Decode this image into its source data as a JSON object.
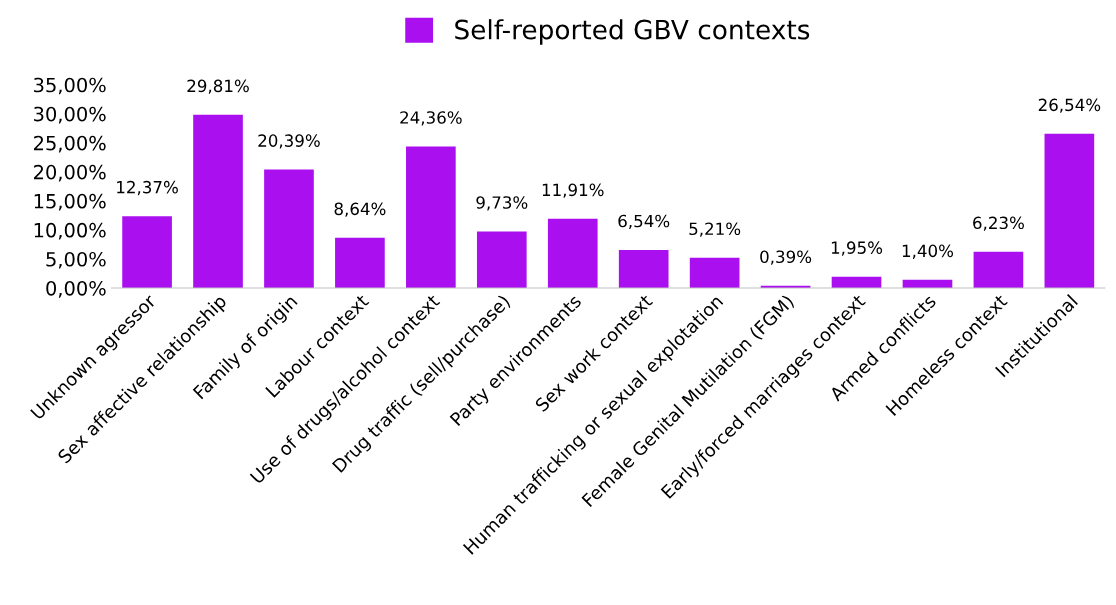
{
  "chart_data": {
    "type": "bar",
    "categories": [
      "Unknown agressor",
      "Sex affective relationship",
      "Family of origin",
      "Labour context",
      "Use of drugs/alcohol context",
      "Drug traffic (sell/purchase)",
      "Party environments",
      "Sex work context",
      "Human trafficking or sexual explotation",
      "Female Genital Mutilation (FGM)",
      "Early/forced marriages context",
      "Armed conflicts",
      "Homeless context",
      "Institutional"
    ],
    "series": [
      {
        "name": "Self-reported GBV contexts",
        "color": "#aa0ff0",
        "values": [
          12.37,
          29.81,
          20.39,
          8.64,
          24.36,
          9.73,
          11.91,
          6.54,
          5.21,
          0.39,
          1.95,
          1.4,
          6.23,
          26.54
        ],
        "value_labels": [
          "12,37%",
          "29,81%",
          "20,39%",
          "8,64%",
          "24,36%",
          "9,73%",
          "11,91%",
          "6,54%",
          "5,21%",
          "0,39%",
          "1,95%",
          "1,40%",
          "6,23%",
          "26,54%"
        ]
      }
    ],
    "ylim": [
      0,
      35
    ],
    "yticks": [
      {
        "value": 0,
        "label": "0,00%"
      },
      {
        "value": 5,
        "label": "5,00%"
      },
      {
        "value": 10,
        "label": "10,00%"
      },
      {
        "value": 15,
        "label": "15,00%"
      },
      {
        "value": 20,
        "label": "20,00%"
      },
      {
        "value": 25,
        "label": "25,00%"
      },
      {
        "value": 30,
        "label": "30,00%"
      },
      {
        "value": 35,
        "label": "35,00%"
      }
    ],
    "grid": false,
    "legend": "top"
  }
}
